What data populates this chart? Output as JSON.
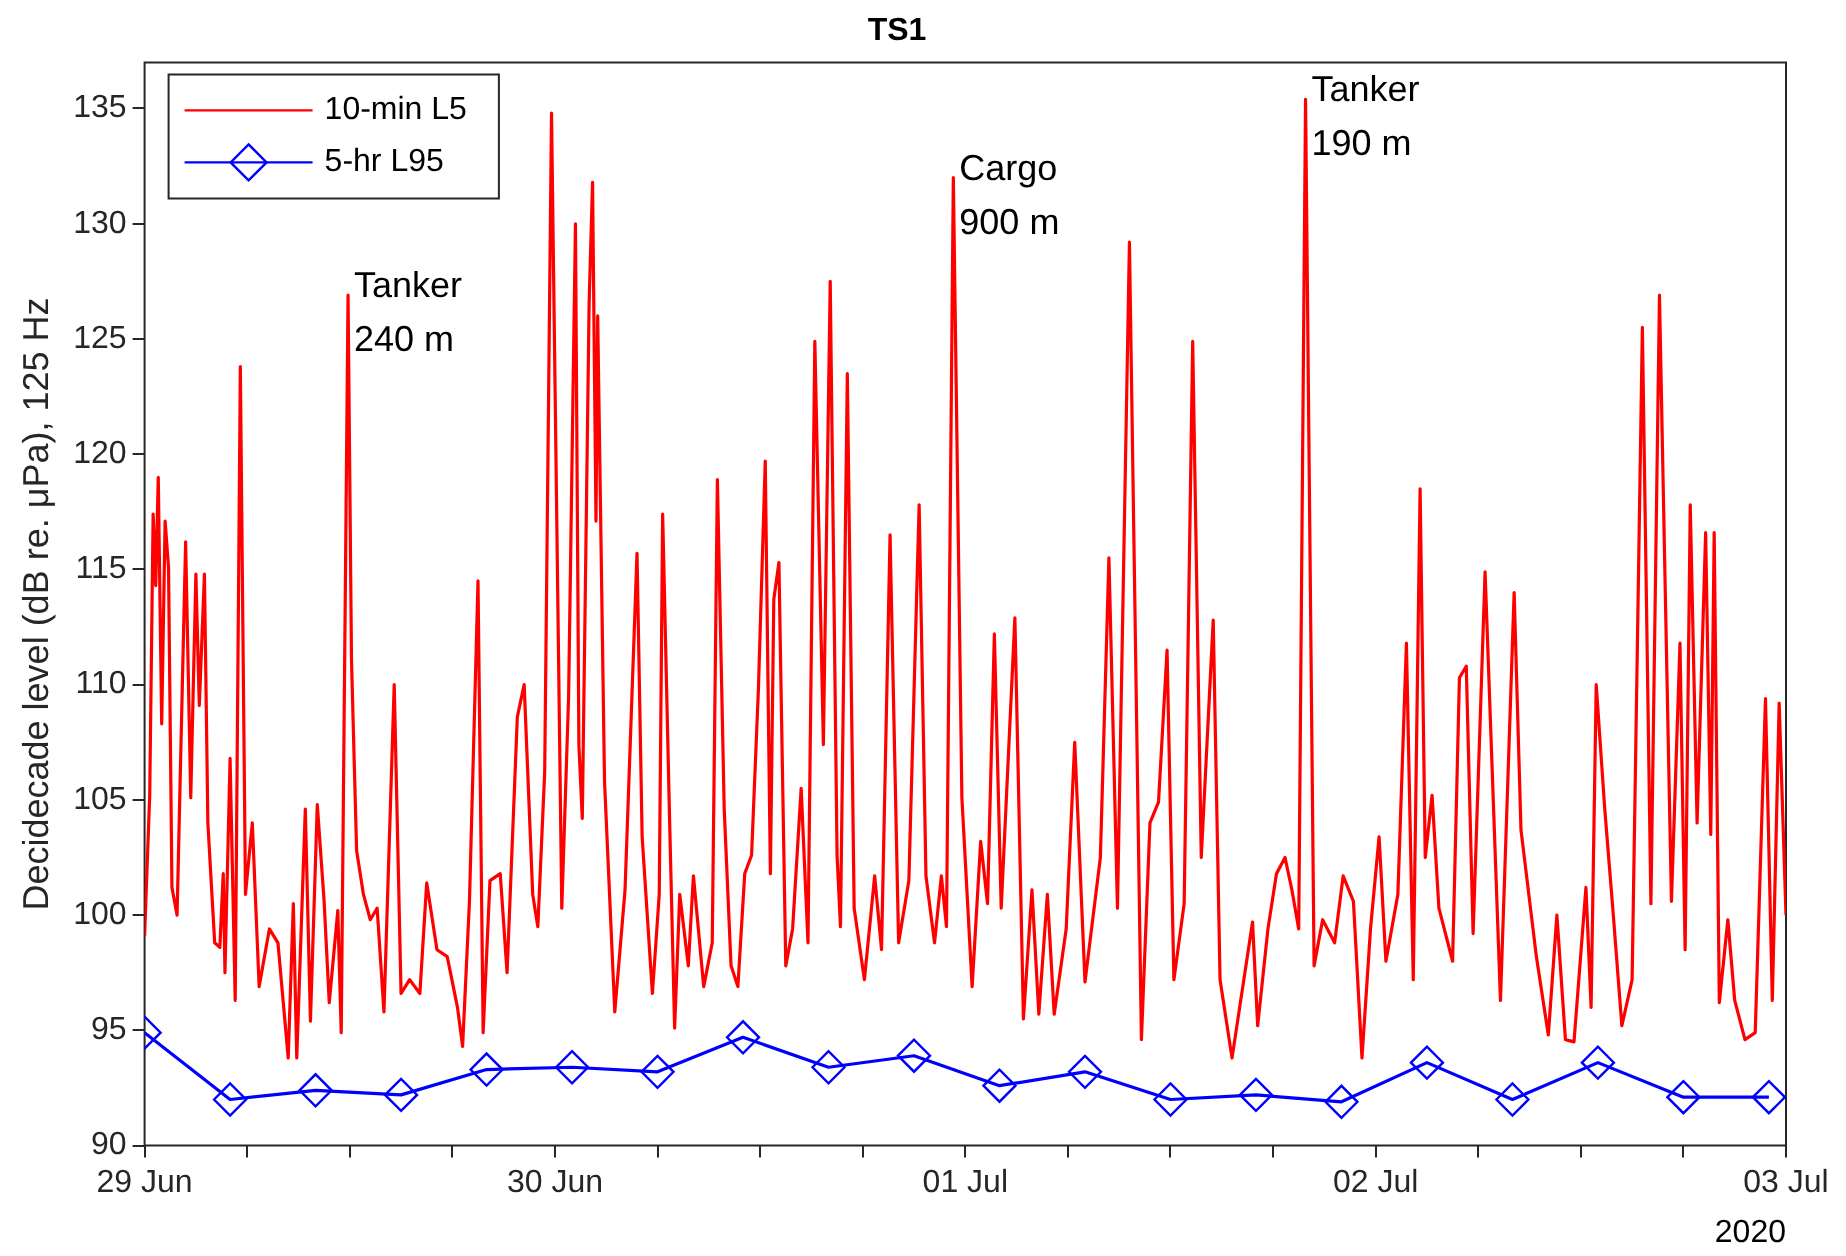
{
  "chart_data": {
    "type": "line",
    "title": "TS1",
    "ylabel": "Decidecade level (dB re. μPa), 125 Hz",
    "xlim": [
      "2020-06-29",
      "2020-07-03"
    ],
    "xticks": [
      {
        "value": "2020-06-29",
        "label": "29 Jun"
      },
      {
        "value": "2020-06-29T06:00",
        "label": null
      },
      {
        "value": "2020-06-29T12:00",
        "label": null
      },
      {
        "value": "2020-06-29T18:00",
        "label": null
      },
      {
        "value": "2020-06-30",
        "label": "30 Jun"
      },
      {
        "value": "2020-06-30T06:00",
        "label": null
      },
      {
        "value": "2020-06-30T12:00",
        "label": null
      },
      {
        "value": "2020-06-30T18:00",
        "label": null
      },
      {
        "value": "2020-07-01",
        "label": "01 Jul"
      },
      {
        "value": "2020-07-01T06:00",
        "label": null
      },
      {
        "value": "2020-07-01T12:00",
        "label": null
      },
      {
        "value": "2020-07-01T18:00",
        "label": null
      },
      {
        "value": "2020-07-02",
        "label": "02 Jul"
      },
      {
        "value": "2020-07-02T06:00",
        "label": null
      },
      {
        "value": "2020-07-02T12:00",
        "label": null
      },
      {
        "value": "2020-07-02T18:00",
        "label": null
      },
      {
        "value": "2020-07-03",
        "label": "03 Jul"
      }
    ],
    "ylim": [
      90,
      137
    ],
    "yticks": [
      90,
      95,
      100,
      105,
      110,
      115,
      120,
      125,
      130,
      135
    ],
    "grid": false,
    "legend": "top left",
    "line_style": "solid",
    "annotations": [
      {
        "text": "Tanker\n240 m",
        "x": "2020-06-29T11:54",
        "y": 126.9
      },
      {
        "text": "Cargo\n900 m",
        "x": "2020-06-30T23:18",
        "y": 132.0
      },
      {
        "text": "Tanker\n190 m",
        "x": "2020-07-01T19:54",
        "y": 135.4
      },
      "2020"
    ],
    "series": [
      {
        "name": "10-min L5",
        "color": "#ff0000",
        "marker": "none",
        "x": [
          "2020-06-29T00:00",
          "2020-06-29T00:18",
          "2020-06-29T00:30",
          "2020-06-29T00:39",
          "2020-06-29T00:48",
          "2020-06-29T01:00",
          "2020-06-29T01:12",
          "2020-06-29T01:24",
          "2020-06-29T01:36",
          "2020-06-29T01:54",
          "2020-06-29T02:24",
          "2020-06-29T02:42",
          "2020-06-29T03:00",
          "2020-06-29T03:12",
          "2020-06-29T03:30",
          "2020-06-29T03:42",
          "2020-06-29T04:06",
          "2020-06-29T04:24",
          "2020-06-29T04:36",
          "2020-06-29T04:42",
          "2020-06-29T05:00",
          "2020-06-29T05:18",
          "2020-06-29T05:36",
          "2020-06-29T05:54",
          "2020-06-29T06:18",
          "2020-06-29T06:42",
          "2020-06-29T07:18",
          "2020-06-29T07:48",
          "2020-06-29T08:24",
          "2020-06-29T08:42",
          "2020-06-29T08:54",
          "2020-06-29T09:24",
          "2020-06-29T09:42",
          "2020-06-29T10:06",
          "2020-06-29T10:30",
          "2020-06-29T10:48",
          "2020-06-29T11:18",
          "2020-06-29T11:30",
          "2020-06-29T11:54",
          "2020-06-29T12:06",
          "2020-06-29T12:24",
          "2020-06-29T12:48",
          "2020-06-29T13:12",
          "2020-06-29T13:36",
          "2020-06-29T14:00",
          "2020-06-29T14:36",
          "2020-06-29T15:00",
          "2020-06-29T15:30",
          "2020-06-29T16:06",
          "2020-06-29T16:30",
          "2020-06-29T17:06",
          "2020-06-29T17:42",
          "2020-06-29T18:18",
          "2020-06-29T18:36",
          "2020-06-29T19:00",
          "2020-06-29T19:30",
          "2020-06-29T19:48",
          "2020-06-29T20:12",
          "2020-06-29T20:48",
          "2020-06-29T21:12",
          "2020-06-29T21:48",
          "2020-06-29T22:12",
          "2020-06-29T22:42",
          "2020-06-29T23:00",
          "2020-06-29T23:24",
          "2020-06-29T23:48",
          "2020-06-30T00:24",
          "2020-06-30T00:48",
          "2020-06-30T01:12",
          "2020-06-30T01:24",
          "2020-06-30T01:36",
          "2020-06-30T02:00",
          "2020-06-30T02:12",
          "2020-06-30T02:24",
          "2020-06-30T02:30",
          "2020-06-30T02:54",
          "2020-06-30T03:30",
          "2020-06-30T04:06",
          "2020-06-30T04:48",
          "2020-06-30T05:06",
          "2020-06-30T05:42",
          "2020-06-30T06:06",
          "2020-06-30T06:18",
          "2020-06-30T06:42",
          "2020-06-30T07:00",
          "2020-06-30T07:18",
          "2020-06-30T07:48",
          "2020-06-30T08:06",
          "2020-06-30T08:42",
          "2020-06-30T09:12",
          "2020-06-30T09:30",
          "2020-06-30T09:54",
          "2020-06-30T10:18",
          "2020-06-30T10:42",
          "2020-06-30T11:06",
          "2020-06-30T11:30",
          "2020-06-30T11:54",
          "2020-06-30T12:18",
          "2020-06-30T12:36",
          "2020-06-30T12:48",
          "2020-06-30T13:06",
          "2020-06-30T13:30",
          "2020-06-30T13:54",
          "2020-06-30T14:24",
          "2020-06-30T14:48",
          "2020-06-30T15:12",
          "2020-06-30T15:42",
          "2020-06-30T16:06",
          "2020-06-30T16:30",
          "2020-06-30T16:42",
          "2020-06-30T17:06",
          "2020-06-30T17:30",
          "2020-06-30T18:06",
          "2020-06-30T18:42",
          "2020-06-30T19:06",
          "2020-06-30T19:36",
          "2020-06-30T20:06",
          "2020-06-30T20:42",
          "2020-06-30T21:18",
          "2020-06-30T21:42",
          "2020-06-30T22:12",
          "2020-06-30T22:36",
          "2020-06-30T22:54",
          "2020-06-30T23:18",
          "2020-06-30T23:48",
          "2020-07-01T00:24",
          "2020-07-01T00:54",
          "2020-07-01T01:18",
          "2020-07-01T01:42",
          "2020-07-01T02:06",
          "2020-07-01T02:54",
          "2020-07-01T03:24",
          "2020-07-01T03:54",
          "2020-07-01T04:18",
          "2020-07-01T04:48",
          "2020-07-01T05:12",
          "2020-07-01T05:54",
          "2020-07-01T06:24",
          "2020-07-01T07:00",
          "2020-07-01T07:54",
          "2020-07-01T08:24",
          "2020-07-01T08:54",
          "2020-07-01T09:36",
          "2020-07-01T10:18",
          "2020-07-01T10:48",
          "2020-07-01T11:18",
          "2020-07-01T11:48",
          "2020-07-01T12:12",
          "2020-07-01T12:48",
          "2020-07-01T13:18",
          "2020-07-01T13:48",
          "2020-07-01T14:30",
          "2020-07-01T14:54",
          "2020-07-01T15:36",
          "2020-07-01T16:48",
          "2020-07-01T17:06",
          "2020-07-01T17:42",
          "2020-07-01T18:12",
          "2020-07-01T18:42",
          "2020-07-01T19:06",
          "2020-07-01T19:30",
          "2020-07-01T19:54",
          "2020-07-01T20:24",
          "2020-07-01T20:54",
          "2020-07-01T21:36",
          "2020-07-01T22:06",
          "2020-07-01T22:42",
          "2020-07-01T23:12",
          "2020-07-01T23:42",
          "2020-07-02T00:12",
          "2020-07-02T00:36",
          "2020-07-02T01:18",
          "2020-07-02T01:48",
          "2020-07-02T02:12",
          "2020-07-02T02:36",
          "2020-07-02T02:54",
          "2020-07-02T03:18",
          "2020-07-02T03:42",
          "2020-07-02T04:30",
          "2020-07-02T04:54",
          "2020-07-02T05:18",
          "2020-07-02T05:42",
          "2020-07-02T06:24",
          "2020-07-02T07:18",
          "2020-07-02T08:06",
          "2020-07-02T08:30",
          "2020-07-02T09:24",
          "2020-07-02T10:06",
          "2020-07-02T10:36",
          "2020-07-02T11:06",
          "2020-07-02T11:36",
          "2020-07-02T12:18",
          "2020-07-02T12:36",
          "2020-07-02T12:54",
          "2020-07-02T13:24",
          "2020-07-02T13:54",
          "2020-07-02T14:24",
          "2020-07-02T15:00",
          "2020-07-02T15:36",
          "2020-07-02T16:06",
          "2020-07-02T16:36",
          "2020-07-02T16:54",
          "2020-07-02T17:18",
          "2020-07-02T17:48",
          "2020-07-02T18:06",
          "2020-07-02T18:24",
          "2020-07-02T18:48",
          "2020-07-02T19:18",
          "2020-07-02T19:36",
          "2020-07-02T19:48",
          "2020-07-02T20:06",
          "2020-07-02T20:36",
          "2020-07-02T21:00",
          "2020-07-02T21:36",
          "2020-07-02T22:12",
          "2020-07-02T22:48",
          "2020-07-02T23:12",
          "2020-07-02T23:36",
          "2020-07-03T00:00"
        ],
        "values": [
          99.1,
          105.2,
          117.4,
          114.3,
          119.0,
          108.3,
          117.1,
          115.1,
          101.2,
          100.0,
          116.2,
          105.1,
          114.8,
          109.1,
          114.8,
          104.0,
          98.8,
          98.6,
          101.8,
          97.5,
          106.8,
          96.3,
          123.8,
          100.9,
          104.0,
          96.9,
          99.4,
          98.8,
          93.8,
          100.5,
          93.8,
          104.6,
          95.4,
          104.8,
          100.6,
          96.2,
          100.2,
          94.9,
          126.9,
          111.1,
          102.8,
          100.9,
          99.8,
          100.3,
          95.8,
          110.0,
          96.6,
          97.2,
          96.6,
          101.4,
          98.5,
          98.2,
          96.0,
          94.3,
          100.6,
          114.5,
          94.9,
          101.5,
          101.8,
          97.5,
          108.6,
          110.0,
          100.9,
          99.5,
          106.2,
          134.8,
          100.3,
          109.5,
          130.0,
          107.4,
          104.2,
          126.6,
          131.8,
          117.1,
          126.0,
          105.8,
          95.8,
          101.1,
          115.7,
          103.4,
          96.6,
          100.9,
          117.4,
          104.3,
          95.1,
          100.9,
          97.8,
          101.7,
          96.9,
          98.8,
          118.9,
          104.6,
          97.8,
          96.9,
          101.8,
          102.6,
          109.8,
          119.7,
          101.8,
          113.7,
          115.3,
          97.8,
          99.4,
          105.5,
          98.8,
          124.9,
          107.4,
          127.5,
          102.6,
          99.5,
          123.5,
          100.3,
          97.2,
          101.7,
          98.5,
          116.5,
          98.8,
          101.5,
          117.8,
          101.7,
          98.8,
          101.7,
          99.5,
          132.0,
          105.1,
          96.9,
          103.2,
          100.5,
          112.2,
          100.3,
          112.9,
          95.5,
          101.1,
          95.7,
          100.9,
          95.7,
          99.4,
          107.5,
          97.1,
          102.5,
          115.5,
          100.3,
          129.2,
          94.6,
          104.0,
          104.9,
          111.5,
          97.2,
          100.5,
          124.9,
          102.5,
          112.8,
          97.2,
          93.8,
          99.7,
          95.2,
          99.4,
          101.8,
          102.5,
          101.1,
          99.4,
          135.4,
          97.8,
          99.8,
          98.8,
          101.7,
          100.6,
          93.8,
          99.4,
          103.4,
          98.0,
          100.9,
          111.8,
          97.2,
          118.5,
          102.5,
          105.2,
          100.3,
          98.0,
          110.3,
          110.8,
          99.2,
          114.9,
          96.3,
          114.0,
          103.7,
          98.2,
          94.8,
          100.0,
          94.6,
          94.5,
          101.2,
          96.0,
          110.0,
          104.6,
          100.0,
          95.2,
          97.2,
          125.5,
          100.5,
          126.9,
          115.5,
          100.6,
          111.8,
          98.5,
          117.8,
          104.0,
          116.6,
          103.5,
          116.6,
          96.2,
          99.8,
          96.3,
          94.6,
          94.9,
          109.4,
          96.3,
          109.2,
          100.0
        ]
      },
      {
        "name": "5-hr L95",
        "color": "#0000ff",
        "marker": "diamond",
        "x": [
          "2020-06-29T00:00",
          "2020-06-29T05:00",
          "2020-06-29T10:00",
          "2020-06-29T15:00",
          "2020-06-29T20:00",
          "2020-06-30T01:00",
          "2020-06-30T06:00",
          "2020-06-30T11:00",
          "2020-06-30T16:00",
          "2020-06-30T21:00",
          "2020-07-01T02:00",
          "2020-07-01T07:00",
          "2020-07-01T12:00",
          "2020-07-01T17:00",
          "2020-07-01T22:00",
          "2020-07-02T03:00",
          "2020-07-02T08:00",
          "2020-07-02T13:00",
          "2020-07-02T18:00",
          "2020-07-02T23:00"
        ],
        "values": [
          94.9,
          92.0,
          92.4,
          92.2,
          93.3,
          93.4,
          93.2,
          94.7,
          93.4,
          93.9,
          92.6,
          93.2,
          92.0,
          92.2,
          91.9,
          93.6,
          92.0,
          93.6,
          92.1,
          92.1
        ]
      }
    ]
  }
}
